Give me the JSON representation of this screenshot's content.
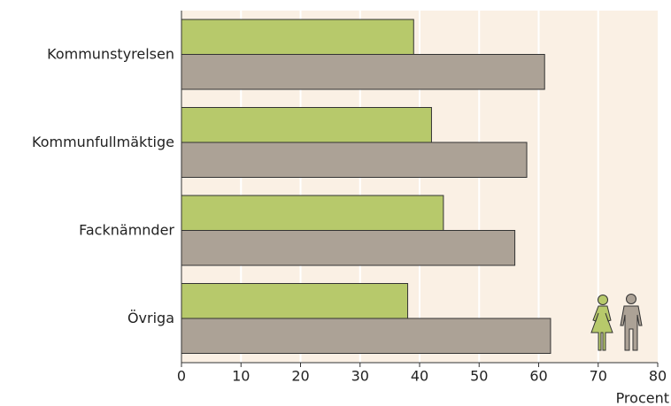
{
  "chart_data": {
    "type": "hbar",
    "categories": [
      "Kommunstyrelsen",
      "Kommunfullmäktige",
      "Facknämnder",
      "Övriga"
    ],
    "series": [
      {
        "color": "#b7c96b",
        "values": [
          39,
          42,
          44,
          38
        ]
      },
      {
        "color": "#aca296",
        "values": [
          61,
          58,
          56,
          62
        ]
      }
    ],
    "xlabel": "Procent",
    "xlim": [
      0,
      80
    ],
    "xticks": [
      0,
      10,
      20,
      30,
      40,
      50,
      60,
      70,
      80
    ],
    "grid": true
  }
}
